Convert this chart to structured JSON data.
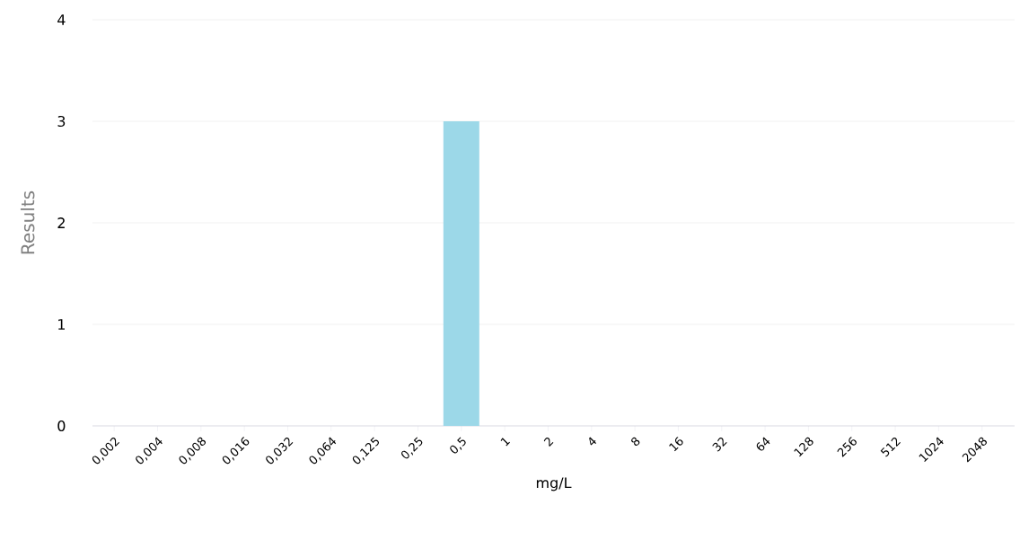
{
  "chart_data": {
    "type": "bar",
    "xlabel": "mg/L",
    "ylabel": "Results",
    "categories": [
      "0,002",
      "0,004",
      "0,008",
      "0,016",
      "0,032",
      "0,064",
      "0,125",
      "0,25",
      "0,5",
      "1",
      "2",
      "4",
      "8",
      "16",
      "32",
      "64",
      "128",
      "256",
      "512",
      "1024",
      "2048"
    ],
    "values": [
      0,
      0,
      0,
      0,
      0,
      0,
      0,
      0,
      3,
      0,
      0,
      0,
      0,
      0,
      0,
      0,
      0,
      0,
      0,
      0,
      0
    ],
    "color": "#9cd8e8",
    "ylim": [
      0,
      4
    ],
    "yticks": [
      0,
      1,
      2,
      3,
      4
    ],
    "grid": "y"
  }
}
